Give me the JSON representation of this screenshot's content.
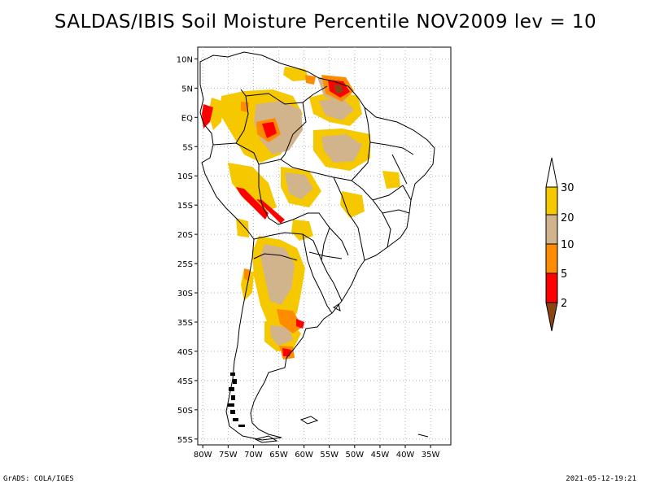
{
  "title": "SALDAS/IBIS Soil Moisture Percentile NOV2009 lev = 10",
  "footer": {
    "left": "GrADS: COLA/IGES",
    "right": "2021-05-12-19:21"
  },
  "axes": {
    "lat_labels": [
      "10N",
      "5N",
      "EQ",
      "5S",
      "10S",
      "15S",
      "20S",
      "25S",
      "30S",
      "35S",
      "40S",
      "45S",
      "50S",
      "55S"
    ],
    "lat_values": [
      10,
      5,
      0,
      -5,
      -10,
      -15,
      -20,
      -25,
      -30,
      -35,
      -40,
      -45,
      -50,
      -55
    ],
    "lon_labels": [
      "80W",
      "75W",
      "70W",
      "65W",
      "60W",
      "55W",
      "50W",
      "45W",
      "40W",
      "35W"
    ],
    "lon_values": [
      -80,
      -75,
      -70,
      -65,
      -60,
      -55,
      -50,
      -45,
      -40,
      -35
    ],
    "lon_range": [
      -81,
      -31
    ],
    "lat_range": [
      -56,
      12
    ]
  },
  "legend": {
    "labels": [
      "30",
      "20",
      "10",
      "5",
      "2"
    ],
    "bins": [
      {
        "name": "above-30",
        "color": "#ffffff"
      },
      {
        "name": "20-30",
        "color": "#f5c800"
      },
      {
        "name": "10-20",
        "color": "#d2b48c"
      },
      {
        "name": "5-10",
        "color": "#ff8c00"
      },
      {
        "name": "2-5",
        "color": "#ff0000"
      },
      {
        "name": "below-2",
        "color": "#8b4513"
      }
    ]
  },
  "colors": {
    "coast": "#000000",
    "grid": "#b0b0b0"
  }
}
